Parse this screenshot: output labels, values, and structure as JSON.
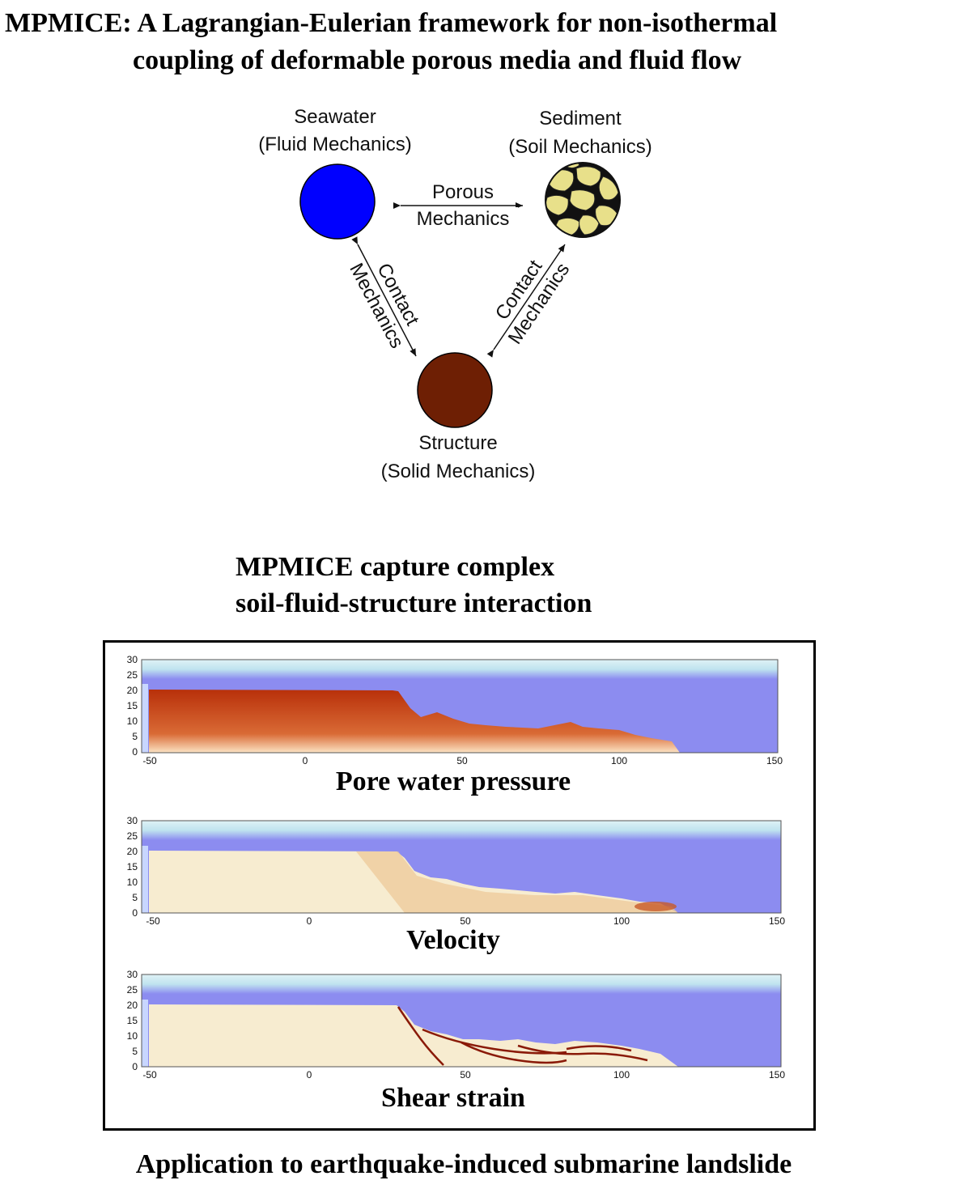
{
  "title": {
    "line1": "MPMICE: A Lagrangian-Eulerian framework for non-isothermal",
    "line2": "coupling of deformable porous media and fluid flow"
  },
  "diagram": {
    "seawater": {
      "name": "Seawater",
      "field": "(Fluid Mechanics)",
      "color": "#0000ff"
    },
    "sediment": {
      "name": "Sediment",
      "field": "(Soil Mechanics)",
      "color": "#e8e08a"
    },
    "structure": {
      "name": "Structure",
      "field": "(Solid Mechanics)",
      "color": "#6e1f04"
    },
    "porous_label": {
      "line1": "Porous",
      "line2": "Mechanics"
    },
    "contact_left": {
      "line1": "Contact",
      "line2": "Mechanics"
    },
    "contact_right": {
      "line1": "Contact",
      "line2": "Mechanics"
    }
  },
  "subtitle": {
    "line1": "MPMICE capture complex",
    "line2": "soil-fluid-structure interaction"
  },
  "panels": [
    {
      "caption": "Pore water pressure",
      "field": "pressure"
    },
    {
      "caption": "Velocity",
      "field": "velocity"
    },
    {
      "caption": "Shear strain",
      "field": "strain"
    }
  ],
  "axes": {
    "x_ticks": [
      "-50",
      "0",
      "50",
      "100",
      "150"
    ],
    "y_ticks": [
      "30",
      "25",
      "20",
      "15",
      "10",
      "5",
      "0"
    ]
  },
  "colors": {
    "water": "#8c8cf0",
    "surface_band": "#bfe3ef",
    "pressure_dark": "#b8300a",
    "pressure_light": "#fbe3c4",
    "soil_light": "#f7ecd0",
    "strain_line": "#8a1a08"
  },
  "footer": "Application to earthquake-induced submarine landslide"
}
